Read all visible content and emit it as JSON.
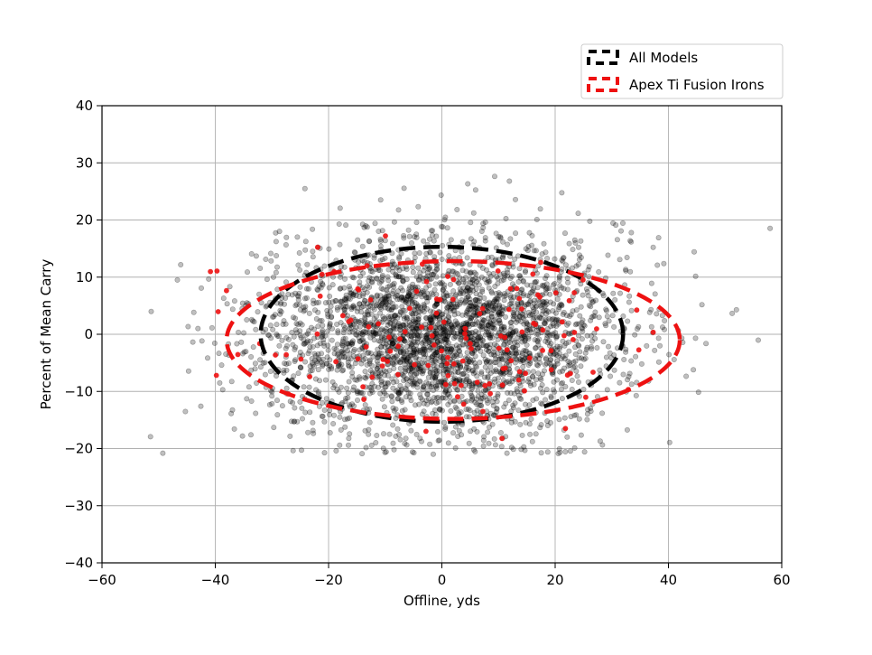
{
  "chart_data": {
    "type": "scatter",
    "xlabel": "Offline, yds",
    "ylabel": "Percent of Mean Carry",
    "xlim": [
      -60,
      60
    ],
    "ylim": [
      -40,
      40
    ],
    "xticks": [
      -60,
      -40,
      -20,
      0,
      20,
      40,
      60
    ],
    "yticks": [
      -40,
      -30,
      -20,
      -10,
      0,
      10,
      20,
      30,
      40
    ],
    "grid": true,
    "legend_position": "upper-right-outside",
    "series": [
      {
        "name": "All Models",
        "kind": "scatter",
        "color": "#000000",
        "alpha": 0.25,
        "count": 3200,
        "std_x": 16,
        "std_y": 8.5
      },
      {
        "name": "Apex Ti Fusion Irons",
        "kind": "scatter",
        "color": "#ee1111",
        "alpha": 0.9,
        "count": 140,
        "std_x": 18,
        "std_y": 7
      }
    ],
    "ellipses": [
      {
        "name": "All Models",
        "center": [
          0,
          0
        ],
        "semi_x": 32,
        "semi_y": 15.3,
        "color": "#000000"
      },
      {
        "name": "Apex Ti Fusion Irons",
        "center": [
          2,
          -1
        ],
        "semi_x": 40,
        "semi_y": 13.8,
        "color": "#ee1111"
      }
    ]
  }
}
